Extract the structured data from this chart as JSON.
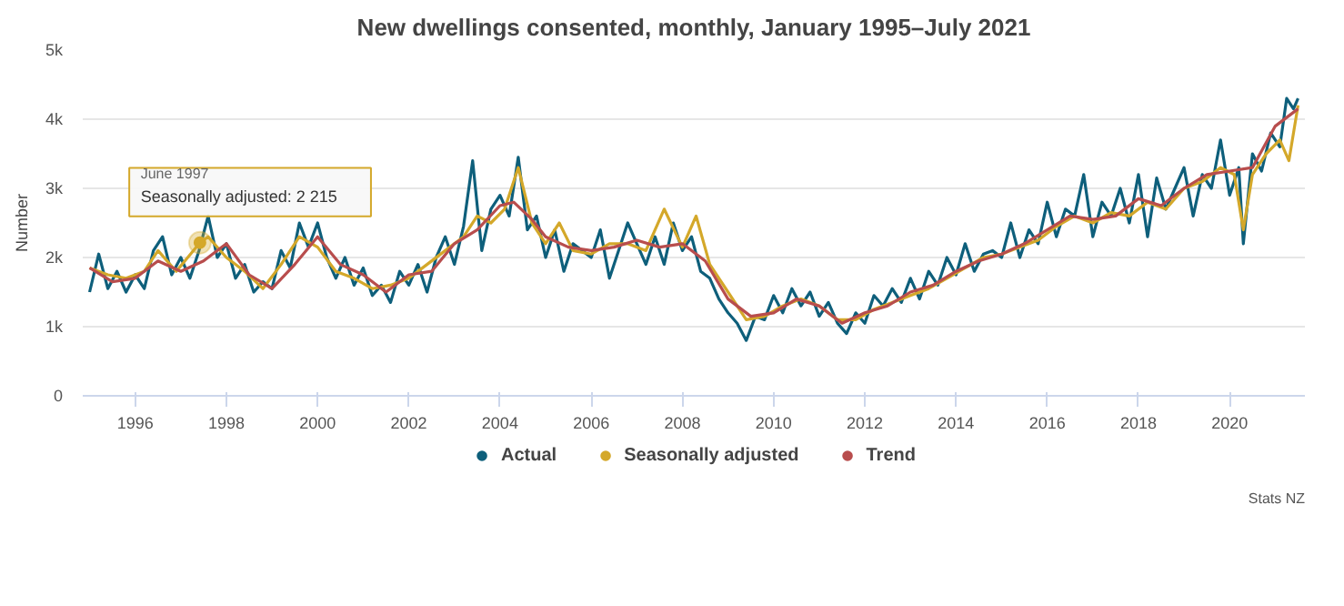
{
  "chart_data": {
    "type": "line",
    "title": "New dwellings consented, monthly, January 1995–July 2021",
    "ylabel": "Number",
    "xlim": [
      1994.85,
      2021.65
    ],
    "xticks": [
      1996,
      1998,
      2000,
      2002,
      2004,
      2006,
      2008,
      2010,
      2012,
      2014,
      2016,
      2018,
      2020
    ],
    "ylim": [
      0,
      5000
    ],
    "yticks": [
      0,
      {
        "value": 1000,
        "label": "1k"
      },
      {
        "value": 2000,
        "label": "2k"
      },
      {
        "value": 3000,
        "label": "3k"
      },
      {
        "value": 4000,
        "label": "4k"
      },
      {
        "value": 5000,
        "label": "5k"
      }
    ],
    "grid": "y",
    "legend": "bottom",
    "marker": "none",
    "line_style": "solid",
    "annotations": [
      {
        "text": "June 1997\nSeasonally adjusted: 2 215",
        "x": 1997.42,
        "y": 2215
      },
      "Stats NZ"
    ],
    "series": [
      {
        "name": "Actual",
        "color": "#0e5f7b",
        "x": [
          1995.0,
          1995.2,
          1995.4,
          1995.6,
          1995.8,
          1996.0,
          1996.2,
          1996.4,
          1996.6,
          1996.8,
          1997.0,
          1997.2,
          1997.4,
          1997.6,
          1997.8,
          1998.0,
          1998.2,
          1998.4,
          1998.6,
          1998.8,
          1999.0,
          1999.2,
          1999.4,
          1999.6,
          1999.8,
          2000.0,
          2000.2,
          2000.4,
          2000.6,
          2000.8,
          2001.0,
          2001.2,
          2001.4,
          2001.6,
          2001.8,
          2002.0,
          2002.2,
          2002.4,
          2002.6,
          2002.8,
          2003.0,
          2003.2,
          2003.4,
          2003.6,
          2003.8,
          2004.0,
          2004.2,
          2004.4,
          2004.6,
          2004.8,
          2005.0,
          2005.2,
          2005.4,
          2005.6,
          2005.8,
          2006.0,
          2006.2,
          2006.4,
          2006.6,
          2006.8,
          2007.0,
          2007.2,
          2007.4,
          2007.6,
          2007.8,
          2008.0,
          2008.2,
          2008.4,
          2008.6,
          2008.8,
          2009.0,
          2009.2,
          2009.4,
          2009.6,
          2009.8,
          2010.0,
          2010.2,
          2010.4,
          2010.6,
          2010.8,
          2011.0,
          2011.2,
          2011.4,
          2011.6,
          2011.8,
          2012.0,
          2012.2,
          2012.4,
          2012.6,
          2012.8,
          2013.0,
          2013.2,
          2013.4,
          2013.6,
          2013.8,
          2014.0,
          2014.2,
          2014.4,
          2014.6,
          2014.8,
          2015.0,
          2015.2,
          2015.4,
          2015.6,
          2015.8,
          2016.0,
          2016.2,
          2016.4,
          2016.6,
          2016.8,
          2017.0,
          2017.2,
          2017.4,
          2017.6,
          2017.8,
          2018.0,
          2018.2,
          2018.4,
          2018.6,
          2018.8,
          2019.0,
          2019.2,
          2019.4,
          2019.6,
          2019.8,
          2020.0,
          2020.2,
          2020.3,
          2020.5,
          2020.7,
          2020.9,
          2021.1,
          2021.25,
          2021.4,
          2021.5
        ],
        "values": [
          1500,
          2050,
          1550,
          1800,
          1500,
          1750,
          1550,
          2100,
          2300,
          1750,
          2000,
          1700,
          2100,
          2600,
          2000,
          2200,
          1700,
          1900,
          1500,
          1650,
          1550,
          2100,
          1850,
          2500,
          2150,
          2500,
          2000,
          1700,
          2000,
          1600,
          1850,
          1450,
          1600,
          1350,
          1800,
          1600,
          1900,
          1500,
          2000,
          2300,
          1900,
          2450,
          3400,
          2100,
          2700,
          2900,
          2600,
          3450,
          2400,
          2600,
          2000,
          2400,
          1800,
          2200,
          2100,
          2000,
          2400,
          1700,
          2100,
          2500,
          2200,
          1900,
          2300,
          1900,
          2500,
          2100,
          2300,
          1800,
          1700,
          1400,
          1200,
          1050,
          800,
          1150,
          1100,
          1450,
          1200,
          1550,
          1300,
          1500,
          1150,
          1350,
          1050,
          900,
          1200,
          1050,
          1450,
          1300,
          1550,
          1350,
          1700,
          1400,
          1800,
          1600,
          2000,
          1750,
          2200,
          1800,
          2050,
          2100,
          2000,
          2500,
          2000,
          2400,
          2200,
          2800,
          2300,
          2700,
          2600,
          3200,
          2300,
          2800,
          2600,
          3000,
          2500,
          3200,
          2300,
          3150,
          2700,
          3000,
          3300,
          2600,
          3200,
          3000,
          3700,
          2900,
          3300,
          2200,
          3500,
          3250,
          3800,
          3600,
          4300,
          4150,
          4300
        ]
      },
      {
        "name": "Seasonally adjusted",
        "color": "#d4a82a",
        "x": [
          1995.0,
          1995.4,
          1995.8,
          1996.2,
          1996.5,
          1996.9,
          1997.42,
          1997.6,
          1998.0,
          1998.4,
          1998.8,
          1999.2,
          1999.6,
          2000.0,
          2000.4,
          2000.8,
          2001.2,
          2001.6,
          2002.0,
          2002.4,
          2002.8,
          2003.2,
          2003.5,
          2003.8,
          2004.1,
          2004.4,
          2004.7,
          2005.0,
          2005.3,
          2005.6,
          2006.0,
          2006.4,
          2006.8,
          2007.2,
          2007.6,
          2008.0,
          2008.3,
          2008.6,
          2009.0,
          2009.4,
          2009.8,
          2010.2,
          2010.6,
          2011.0,
          2011.4,
          2011.8,
          2012.2,
          2012.6,
          2013.0,
          2013.4,
          2013.8,
          2014.2,
          2014.6,
          2015.0,
          2015.4,
          2015.8,
          2016.2,
          2016.6,
          2017.0,
          2017.4,
          2017.8,
          2018.2,
          2018.6,
          2019.0,
          2019.4,
          2019.8,
          2020.1,
          2020.3,
          2020.5,
          2020.8,
          2021.1,
          2021.3,
          2021.5
        ],
        "values": [
          1850,
          1750,
          1700,
          1800,
          2100,
          1800,
          2215,
          2300,
          2000,
          1800,
          1550,
          1900,
          2300,
          2150,
          1800,
          1700,
          1550,
          1600,
          1700,
          1900,
          2100,
          2300,
          2600,
          2500,
          2700,
          3300,
          2500,
          2200,
          2500,
          2100,
          2050,
          2200,
          2200,
          2100,
          2700,
          2150,
          2600,
          1900,
          1500,
          1100,
          1150,
          1300,
          1400,
          1300,
          1100,
          1100,
          1250,
          1350,
          1450,
          1550,
          1700,
          1850,
          2000,
          2050,
          2150,
          2250,
          2450,
          2600,
          2500,
          2650,
          2600,
          2800,
          2700,
          3000,
          3100,
          3300,
          3200,
          2400,
          3200,
          3500,
          3700,
          3400,
          4200
        ]
      },
      {
        "name": "Trend",
        "color": "#b84d4d",
        "x": [
          1995.0,
          1995.5,
          1996.0,
          1996.5,
          1997.0,
          1997.5,
          1998.0,
          1998.5,
          1999.0,
          1999.5,
          2000.0,
          2000.5,
          2001.0,
          2001.5,
          2002.0,
          2002.5,
          2003.0,
          2003.5,
          2004.0,
          2004.3,
          2004.7,
          2005.0,
          2005.5,
          2006.0,
          2006.5,
          2007.0,
          2007.5,
          2008.0,
          2008.5,
          2009.0,
          2009.5,
          2010.0,
          2010.5,
          2011.0,
          2011.5,
          2012.0,
          2012.5,
          2013.0,
          2013.5,
          2014.0,
          2014.5,
          2015.0,
          2015.5,
          2016.0,
          2016.5,
          2017.0,
          2017.5,
          2018.0,
          2018.5,
          2019.0,
          2019.5,
          2020.0,
          2020.5,
          2021.0,
          2021.5
        ],
        "values": [
          1850,
          1650,
          1700,
          1950,
          1800,
          1950,
          2200,
          1750,
          1550,
          1900,
          2300,
          1900,
          1750,
          1500,
          1750,
          1800,
          2200,
          2400,
          2750,
          2800,
          2550,
          2300,
          2150,
          2100,
          2150,
          2250,
          2150,
          2200,
          1950,
          1400,
          1150,
          1200,
          1400,
          1300,
          1050,
          1200,
          1300,
          1500,
          1600,
          1800,
          1950,
          2050,
          2200,
          2400,
          2600,
          2550,
          2600,
          2850,
          2750,
          3000,
          3200,
          3250,
          3300,
          3900,
          4150
        ]
      }
    ]
  }
}
